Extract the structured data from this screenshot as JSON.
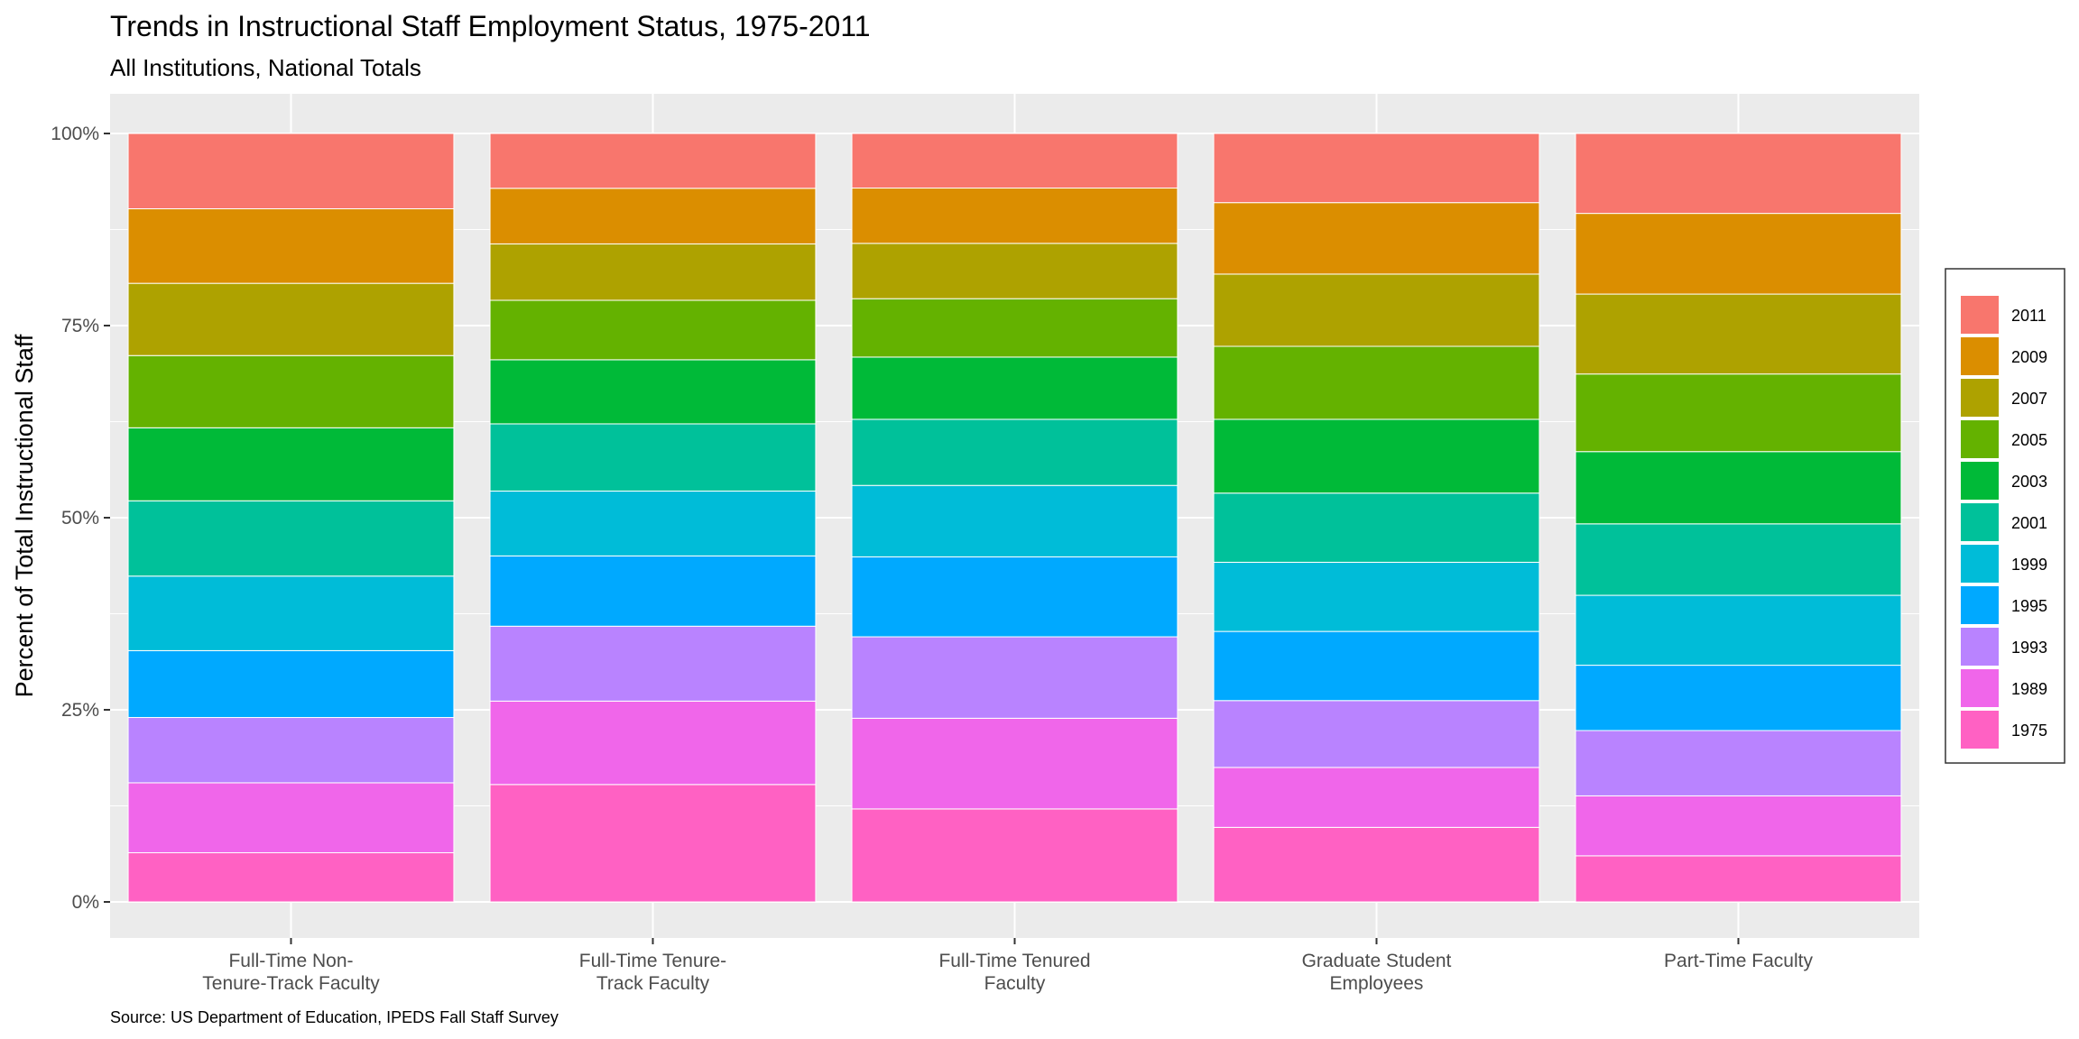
{
  "chart_data": {
    "type": "bar",
    "stacked": true,
    "normalized": true,
    "title": "Trends in Instructional Staff Employment Status, 1975-2011",
    "subtitle": "All Institutions, National Totals",
    "xlabel": "",
    "ylabel": "Percent of Total Instructional Staff",
    "caption": "Source: US Department of Education, IPEDS Fall Staff Survey",
    "ylim": [
      0,
      1
    ],
    "yticks": [
      {
        "value": 0,
        "label": "0%"
      },
      {
        "value": 0.25,
        "label": "25%"
      },
      {
        "value": 0.5,
        "label": "50%"
      },
      {
        "value": 0.75,
        "label": "75%"
      },
      {
        "value": 1,
        "label": "100%"
      }
    ],
    "grid": true,
    "legend_position": "right",
    "categories": [
      [
        "Full-Time Non-",
        "Tenure-Track Faculty"
      ],
      [
        "Full-Time Tenure-",
        "Track Faculty"
      ],
      [
        "Full-Time Tenured",
        "Faculty"
      ],
      [
        "Graduate Student",
        "Employees"
      ],
      [
        "Part-Time Faculty"
      ]
    ],
    "series": [
      {
        "name": "1975",
        "color": "#FF61C3",
        "values": [
          0.064,
          0.152,
          0.121,
          0.097,
          0.06
        ]
      },
      {
        "name": "1989",
        "color": "#F066EA",
        "values": [
          0.091,
          0.108,
          0.118,
          0.078,
          0.078
        ]
      },
      {
        "name": "1993",
        "color": "#B983FF",
        "values": [
          0.085,
          0.097,
          0.106,
          0.087,
          0.085
        ]
      },
      {
        "name": "1995",
        "color": "#00A9FF",
        "values": [
          0.087,
          0.091,
          0.104,
          0.09,
          0.085
        ]
      },
      {
        "name": "1999",
        "color": "#00BCD8",
        "values": [
          0.097,
          0.084,
          0.093,
          0.09,
          0.091
        ]
      },
      {
        "name": "2001",
        "color": "#00C19A",
        "values": [
          0.098,
          0.087,
          0.086,
          0.09,
          0.093
        ]
      },
      {
        "name": "2003",
        "color": "#00BA38",
        "values": [
          0.095,
          0.083,
          0.081,
          0.096,
          0.094
        ]
      },
      {
        "name": "2005",
        "color": "#64B200",
        "values": [
          0.094,
          0.077,
          0.076,
          0.095,
          0.101
        ]
      },
      {
        "name": "2007",
        "color": "#AEA200",
        "values": [
          0.094,
          0.073,
          0.072,
          0.094,
          0.104
        ]
      },
      {
        "name": "2009",
        "color": "#DB8E00",
        "values": [
          0.097,
          0.072,
          0.072,
          0.093,
          0.105
        ]
      },
      {
        "name": "2011",
        "color": "#F8766D",
        "values": [
          0.098,
          0.071,
          0.071,
          0.09,
          0.104
        ]
      }
    ],
    "colors": {
      "panel_background": "#EBEBEB",
      "grid": "#FFFFFF",
      "bar_outline": "#FFFFFF",
      "legend_border": "#333333"
    }
  }
}
